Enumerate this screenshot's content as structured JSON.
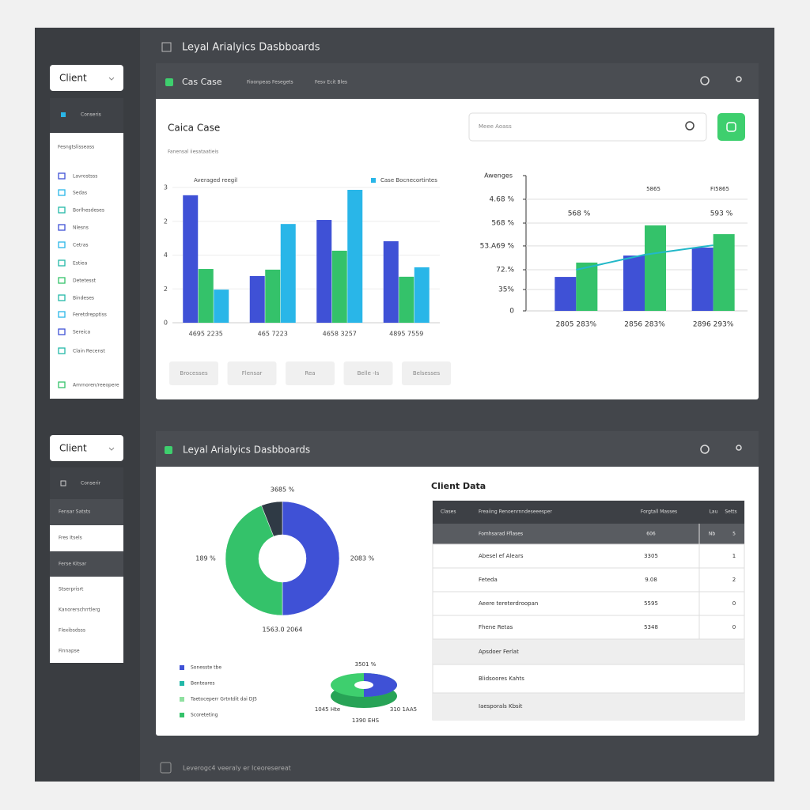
{
  "header": {
    "title": "Leyal Arialyics Dasbboards"
  },
  "sidebar_top": {
    "client": "Client",
    "active": "Conseris",
    "section": "Fesngtslisseass",
    "items": [
      "Lavrostsss",
      "Sedas",
      "Borlhesdeses",
      "Nlesns",
      "Cetras",
      "Estiea",
      "Detetesst",
      "Bindeses",
      "Feretdrepptiss",
      "Sereica",
      "Clain Recenst",
      "Amrnoren/reeopere"
    ]
  },
  "panel1": {
    "tab": "Cas Case",
    "tabs": [
      "Fioonpeas Fesegets",
      "Fesv Ecit Bles"
    ],
    "title": "Caica Case",
    "subtitle": "Fanensal iiesataatieis",
    "search_placeholder": "Meee Aoass",
    "bar_chart": {
      "type": "bar",
      "categories": [
        "4695  2235",
        "465  7223",
        "4658  3257",
        "4895  7559"
      ],
      "series": [
        {
          "name": "Averaged reegil",
          "color": "#3f51d6",
          "values": [
            3.77,
            1.38,
            3.04,
            2.41
          ]
        },
        {
          "color": "#34c26a",
          "values": [
            1.59,
            1.57,
            2.13,
            1.36
          ]
        },
        {
          "name": "Case Bocnecortintes",
          "color": "#29b6e8",
          "values": [
            0.98,
            2.92,
            3.93,
            1.64
          ]
        }
      ],
      "ylim": [
        0,
        4
      ],
      "yticks": [
        {
          "value": 4,
          "label": "3"
        },
        {
          "value": 3,
          "label": "2"
        },
        {
          "value": 2,
          "label": "4"
        },
        {
          "value": 1,
          "label": "2"
        },
        0
      ],
      "grid": true
    },
    "buttons": [
      "Brocesses",
      "Flensar",
      "Rea",
      "Belle -Is",
      "Belsesses"
    ],
    "combo_chart": {
      "type": "bar",
      "title": "Awenges",
      "categories": [
        "2805  283%",
        "2856  283%",
        "2896  293%"
      ],
      "series": [
        {
          "color": "#3f51d6",
          "values": [
            25.1,
            40.9,
            46.8
          ]
        },
        {
          "color": "#34c26a",
          "values": [
            35.7,
            63.2,
            56.7
          ]
        }
      ],
      "line": {
        "color": "#22b8c8",
        "values": [
          30.4,
          41.5,
          48.5
        ]
      },
      "ylim": [
        0,
        100
      ],
      "yticks": [
        {
          "value": 82.5,
          "label": "4.68 %"
        },
        {
          "value": 64.9,
          "label": "568 %"
        },
        {
          "value": 48,
          "label": "53.A69 %"
        },
        {
          "value": 30.4,
          "label": "72.%"
        },
        {
          "value": 15.8,
          "label": "35%"
        },
        0
      ],
      "annotations": [
        "568 %",
        "593 %",
        "5865",
        "FI5865"
      ]
    }
  },
  "sidebar_bottom": {
    "client": "Client",
    "items": [
      "Conserir",
      "Fensar Satsts",
      "Fres Itsels",
      "Ferse Kitsar",
      "Stserprisrt",
      "Kanorerschrrtlerg",
      "Flexibsdsss",
      "Finnapse"
    ]
  },
  "panel2": {
    "title": "Leyal Arialyics Dasbboards",
    "donut": {
      "type": "pie",
      "values": [
        50,
        44,
        6
      ],
      "colors": [
        "#3f51d6",
        "#34c26a",
        "#2f3a45"
      ],
      "annotations": [
        "3685 %",
        "189 %",
        "2083 %",
        "1563.0 2064"
      ]
    },
    "legend": [
      {
        "name": "Sonesste tbe",
        "color": "#3f51d6"
      },
      {
        "name": "Benteares",
        "color": "#22b8a8"
      },
      {
        "name": "Taetoceperr Grtntdit dai DJ5",
        "color": "#8fe0a0"
      },
      {
        "name": "Scoreteting",
        "color": "#34c26a"
      }
    ],
    "small_pie": {
      "labels": [
        "3501 %",
        "1045 Hte",
        "310 1AA5",
        "1390 EHS"
      ]
    },
    "table": {
      "title": "Client Data",
      "columns": [
        "Clases",
        "Freaiing Renoenrnndeseeesper",
        "Forgtall Masses",
        "Lau",
        "Setts"
      ],
      "rows": [
        [
          "Fomhsarad Fflases",
          "606",
          "Nb",
          "5"
        ],
        [
          "Abesel ef Alears",
          "3305",
          "",
          "1"
        ],
        [
          "Feteda",
          "9.08",
          "",
          "2"
        ],
        [
          "Aeere tereterdroopan",
          "5595",
          "",
          "0"
        ],
        [
          "Fhene Retas",
          "5348",
          "",
          "0"
        ],
        [
          "Apsdoer Ferlat"
        ],
        [
          "Blidsoores Kahts"
        ],
        [
          "Iaesporals Kbsit"
        ]
      ]
    }
  },
  "footer": {
    "text": "Leverogc4 veeraly er Iceoresereat"
  }
}
